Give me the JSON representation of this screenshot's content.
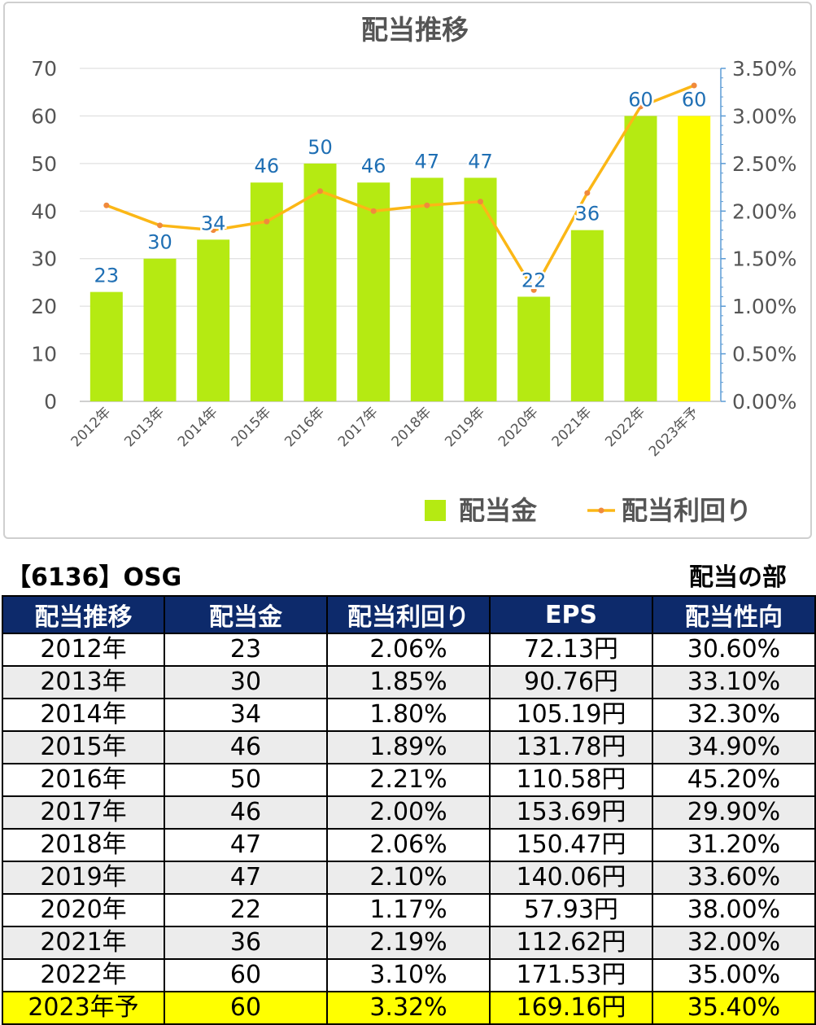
{
  "chart_data": {
    "type": "bar",
    "title": "配当推移",
    "categories": [
      "2012年",
      "2013年",
      "2014年",
      "2015年",
      "2016年",
      "2017年",
      "2018年",
      "2019年",
      "2020年",
      "2021年",
      "2022年",
      "2023年予"
    ],
    "series": [
      {
        "name": "配当金",
        "kind": "bar",
        "axis": "left",
        "color": "#b5ea12",
        "highlight_last_color": "#ffff00",
        "values": [
          23,
          30,
          34,
          46,
          50,
          46,
          47,
          47,
          22,
          36,
          60,
          60
        ]
      },
      {
        "name": "配当利回り",
        "kind": "line",
        "axis": "right",
        "color": "#fbb716",
        "marker_color": "#f08a3c",
        "values": [
          2.06,
          1.85,
          1.8,
          1.89,
          2.21,
          2.0,
          2.06,
          2.1,
          1.17,
          2.19,
          3.1,
          3.32
        ]
      }
    ],
    "data_labels": [
      "23",
      "30",
      "34",
      "46",
      "50",
      "46",
      "47",
      "47",
      "22",
      "36",
      "60",
      "60"
    ],
    "ylim": [
      0,
      70
    ],
    "y_ticks": [
      "0",
      "10",
      "20",
      "30",
      "40",
      "50",
      "60",
      "70"
    ],
    "y2lim": [
      0,
      3.5
    ],
    "y2_ticks": [
      "0.00%",
      "0.50%",
      "1.00%",
      "1.50%",
      "2.00%",
      "2.50%",
      "3.00%",
      "3.50%"
    ],
    "grid": true,
    "legend_position": "bottom-right",
    "label_color": "#1f6fb4"
  },
  "header": {
    "ticker": "【6136】OSG",
    "section": "配当の部"
  },
  "table": {
    "columns": [
      "配当推移",
      "配当金",
      "配当利回り",
      "EPS",
      "配当性向"
    ],
    "rows": [
      [
        "2012年",
        "23",
        "2.06%",
        "72.13円",
        "30.60%"
      ],
      [
        "2013年",
        "30",
        "1.85%",
        "90.76円",
        "33.10%"
      ],
      [
        "2014年",
        "34",
        "1.80%",
        "105.19円",
        "32.30%"
      ],
      [
        "2015年",
        "46",
        "1.89%",
        "131.78円",
        "34.90%"
      ],
      [
        "2016年",
        "50",
        "2.21%",
        "110.58円",
        "45.20%"
      ],
      [
        "2017年",
        "46",
        "2.00%",
        "153.69円",
        "29.90%"
      ],
      [
        "2018年",
        "47",
        "2.06%",
        "150.47円",
        "31.20%"
      ],
      [
        "2019年",
        "47",
        "2.10%",
        "140.06円",
        "33.60%"
      ],
      [
        "2020年",
        "22",
        "1.17%",
        "57.93円",
        "38.00%"
      ],
      [
        "2021年",
        "36",
        "2.19%",
        "112.62円",
        "32.00%"
      ],
      [
        "2022年",
        "60",
        "3.10%",
        "171.53円",
        "35.00%"
      ],
      [
        "2023年予",
        "60",
        "3.32%",
        "169.16円",
        "35.40%"
      ]
    ]
  }
}
